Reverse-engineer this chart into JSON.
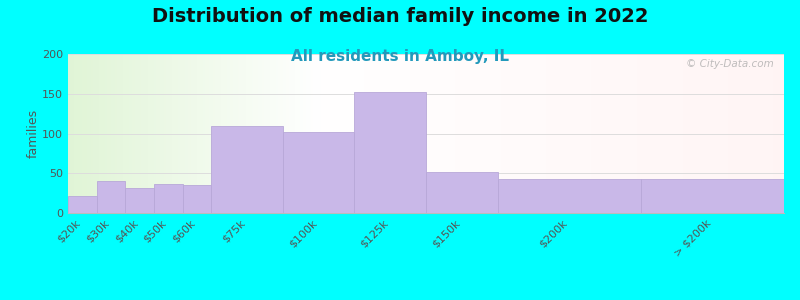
{
  "title": "Distribution of median family income in 2022",
  "subtitle": "All residents in Amboy, IL",
  "ylabel": "families",
  "background_outer": "#00ffff",
  "bar_color": "#c9b8e8",
  "bar_edge_color": "#b8a8d8",
  "categories": [
    "$20k",
    "$30k",
    "$40k",
    "$50k",
    "$60k",
    "$75k",
    "$100k",
    "$125k",
    "$150k",
    "$200k",
    "> $200k"
  ],
  "left_edges": [
    0,
    10,
    20,
    30,
    40,
    50,
    75,
    100,
    125,
    150,
    200
  ],
  "widths": [
    10,
    10,
    10,
    10,
    10,
    25,
    25,
    25,
    25,
    50,
    50
  ],
  "values": [
    22,
    40,
    32,
    37,
    35,
    110,
    102,
    152,
    52,
    43,
    43
  ],
  "ylim": [
    0,
    200
  ],
  "yticks": [
    0,
    50,
    100,
    150,
    200
  ],
  "xlim": [
    0,
    250
  ],
  "watermark": "© City-Data.com",
  "title_fontsize": 14,
  "subtitle_fontsize": 11,
  "ylabel_fontsize": 9,
  "tick_fontsize": 8
}
